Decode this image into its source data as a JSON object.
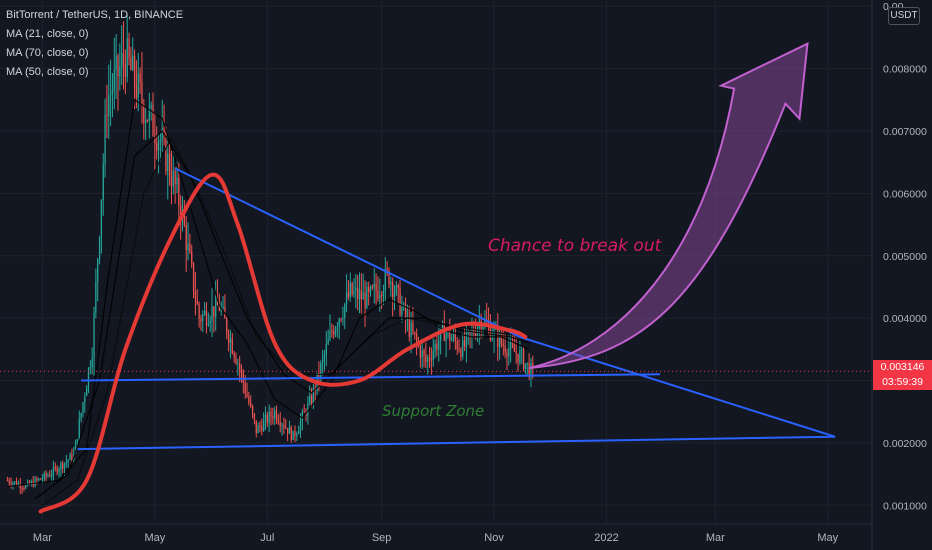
{
  "header": {
    "symbol_line": "BitTorrent / TetherUS, 1D, BINANCE",
    "indicators": [
      "MA (21, close, 0)",
      "MA (70, close, 0)",
      "MA (50, close, 0)"
    ]
  },
  "currency_button": "USDT",
  "last_price": "0.003146",
  "countdown": "03:59:39",
  "annotations": {
    "breakout": "Chance to break out",
    "support": "Support Zone"
  },
  "colors": {
    "background": "#131722",
    "candle_up": "#26a69a",
    "candle_down": "#ef5350",
    "trendline": "#2962ff",
    "curve": "#e53935",
    "arrow": "#9c4fa8",
    "breakout_text": "#d81b60",
    "support_text": "#2e7d32",
    "price_badge": "#f23645"
  },
  "chart_data": {
    "type": "candlestick",
    "title": "BitTorrent / TetherUS, 1D, BINANCE",
    "x_ticks": [
      "Mar",
      "May",
      "Jul",
      "Sep",
      "Nov",
      "2022",
      "Mar",
      "May"
    ],
    "y_ticks": [
      "0.001000",
      "0.002000",
      "0.003000",
      "0.004000",
      "0.005000",
      "0.006000",
      "0.007000",
      "0.008000",
      "0.00"
    ],
    "ylim": [
      0.0007,
      0.0091
    ],
    "price_path": [
      [
        "2021-02-10",
        0.0014
      ],
      [
        "2021-02-20",
        0.0013
      ],
      [
        "2021-03-05",
        0.0015
      ],
      [
        "2021-03-18",
        0.0018
      ],
      [
        "2021-03-28",
        0.0035
      ],
      [
        "2021-04-05",
        0.0075
      ],
      [
        "2021-04-15",
        0.0082
      ],
      [
        "2021-04-25",
        0.0074
      ],
      [
        "2021-05-05",
        0.0068
      ],
      [
        "2021-05-15",
        0.0058
      ],
      [
        "2021-05-25",
        0.004
      ],
      [
        "2021-06-05",
        0.0042
      ],
      [
        "2021-06-15",
        0.0033
      ],
      [
        "2021-06-25",
        0.0022
      ],
      [
        "2021-07-05",
        0.0025
      ],
      [
        "2021-07-15",
        0.0021
      ],
      [
        "2021-07-25",
        0.0027
      ],
      [
        "2021-08-05",
        0.0038
      ],
      [
        "2021-08-15",
        0.0044
      ],
      [
        "2021-08-25",
        0.0043
      ],
      [
        "2021-09-05",
        0.0047
      ],
      [
        "2021-09-15",
        0.0039
      ],
      [
        "2021-09-25",
        0.0033
      ],
      [
        "2021-10-05",
        0.0038
      ],
      [
        "2021-10-15",
        0.0035
      ],
      [
        "2021-10-25",
        0.004
      ],
      [
        "2021-11-05",
        0.0036
      ],
      [
        "2021-11-15",
        0.0034
      ],
      [
        "2021-11-22",
        0.0031
      ]
    ],
    "ma_lines": [
      {
        "name": "MA (21, close, 0)",
        "values": [
          [
            "2021-02-10",
            0.0013
          ],
          [
            "2021-03-10",
            0.0014
          ],
          [
            "2021-03-25",
            0.0019
          ],
          [
            "2021-04-05",
            0.0045
          ],
          [
            "2021-04-20",
            0.0075
          ],
          [
            "2021-05-05",
            0.0072
          ],
          [
            "2021-05-20",
            0.0058
          ],
          [
            "2021-06-05",
            0.0042
          ],
          [
            "2021-06-20",
            0.0036
          ],
          [
            "2021-07-05",
            0.0027
          ],
          [
            "2021-07-20",
            0.0024
          ],
          [
            "2021-08-05",
            0.003
          ],
          [
            "2021-08-20",
            0.004
          ],
          [
            "2021-09-05",
            0.0043
          ],
          [
            "2021-09-20",
            0.0041
          ],
          [
            "2021-10-05",
            0.0038
          ],
          [
            "2021-10-20",
            0.0037
          ],
          [
            "2021-11-05",
            0.0037
          ],
          [
            "2021-11-20",
            0.0035
          ]
        ]
      },
      {
        "name": "MA (70, close, 0)",
        "values": [
          [
            "2021-03-01",
            0.001
          ],
          [
            "2021-03-20",
            0.0014
          ],
          [
            "2021-04-05",
            0.0028
          ],
          [
            "2021-04-25",
            0.006
          ],
          [
            "2021-05-10",
            0.0069
          ],
          [
            "2021-05-25",
            0.006
          ],
          [
            "2021-06-10",
            0.0049
          ],
          [
            "2021-06-25",
            0.0037
          ],
          [
            "2021-07-15",
            0.0031
          ],
          [
            "2021-08-05",
            0.0031
          ],
          [
            "2021-08-25",
            0.0037
          ],
          [
            "2021-09-15",
            0.004
          ],
          [
            "2021-10-05",
            0.0039
          ],
          [
            "2021-10-25",
            0.0038
          ],
          [
            "2021-11-20",
            0.0037
          ]
        ]
      },
      {
        "name": "MA (50, close, 0)",
        "values": [
          [
            "2021-02-25",
            0.0011
          ],
          [
            "2021-03-15",
            0.0015
          ],
          [
            "2021-04-01",
            0.003
          ],
          [
            "2021-04-20",
            0.0066
          ],
          [
            "2021-05-05",
            0.007
          ],
          [
            "2021-05-20",
            0.0063
          ],
          [
            "2021-06-05",
            0.0051
          ],
          [
            "2021-06-20",
            0.004
          ],
          [
            "2021-07-10",
            0.0031
          ],
          [
            "2021-07-25",
            0.0028
          ],
          [
            "2021-08-15",
            0.0034
          ],
          [
            "2021-09-05",
            0.004
          ],
          [
            "2021-09-25",
            0.004
          ],
          [
            "2021-10-15",
            0.0038
          ],
          [
            "2021-11-10",
            0.0037
          ],
          [
            "2021-11-20",
            0.0036
          ]
        ]
      }
    ],
    "drawings": {
      "triangle_upper": [
        [
          "2021-05-12",
          0.0064
        ],
        [
          "2021-11-15",
          0.0037
        ],
        [
          "2022-05-05",
          0.0021
        ]
      ],
      "triangle_lower": [
        [
          "2021-03-20",
          0.0019
        ],
        [
          "2022-05-05",
          0.0021
        ]
      ],
      "support_line": [
        [
          "2021-03-22",
          0.003
        ],
        [
          "2022-01-30",
          0.0031
        ]
      ],
      "curve": [
        [
          "2021-02-28",
          0.0009
        ],
        [
          "2021-03-25",
          0.0014
        ],
        [
          "2021-04-15",
          0.0035
        ],
        [
          "2021-05-10",
          0.0053
        ],
        [
          "2021-06-01",
          0.0063
        ],
        [
          "2021-06-15",
          0.0055
        ],
        [
          "2021-07-05",
          0.0036
        ],
        [
          "2021-07-25",
          0.003
        ],
        [
          "2021-08-20",
          0.003
        ],
        [
          "2021-09-15",
          0.0035
        ],
        [
          "2021-10-15",
          0.0039
        ],
        [
          "2021-11-10",
          0.0038
        ],
        [
          "2021-11-18",
          0.0037
        ]
      ],
      "breakout_arrow": {
        "from": [
          "2021-11-20",
          0.0032
        ],
        "to": [
          "2022-04-20",
          0.0084
        ]
      }
    }
  }
}
